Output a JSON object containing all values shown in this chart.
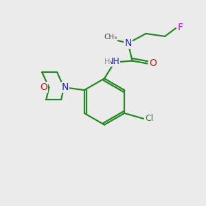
{
  "background_color": "#ebebeb",
  "atom_colors": {
    "C": "#1a1a1a",
    "N": "#2020cc",
    "O": "#cc2020",
    "F": "#cc00cc",
    "Cl": "#228822",
    "H": "#888888"
  },
  "bond_color": "#228822",
  "figsize": [
    3.0,
    3.0
  ],
  "dpi": 100
}
